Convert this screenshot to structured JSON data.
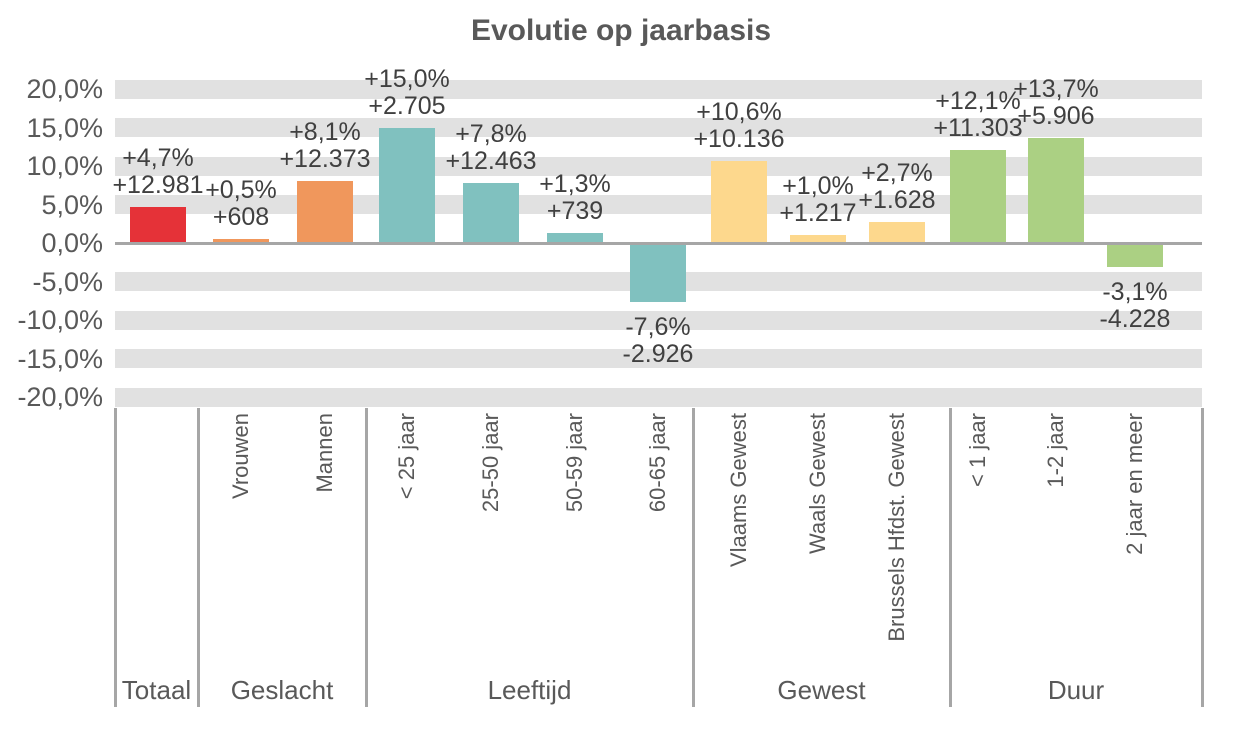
{
  "chart_data": {
    "type": "bar",
    "title": "Evolutie op jaarbasis",
    "unit": "%",
    "grid": "horizontal-stripes",
    "legend": "none",
    "y_axis": {
      "min": -20,
      "max": 20,
      "step": 5,
      "ticks": [
        {
          "value": 20,
          "label": "20,0%"
        },
        {
          "value": 15,
          "label": "15,0%"
        },
        {
          "value": 10,
          "label": "10,0%"
        },
        {
          "value": 5,
          "label": "5,0%"
        },
        {
          "value": 0,
          "label": "0,0%"
        },
        {
          "value": -5,
          "label": "-5,0%"
        },
        {
          "value": -10,
          "label": "-10,0%"
        },
        {
          "value": -15,
          "label": "-15,0%"
        },
        {
          "value": -20,
          "label": "-20,0%"
        }
      ]
    },
    "groups": [
      {
        "label": "Totaal",
        "color": "#e53238",
        "bars": [
          {
            "category": "",
            "value_pct": 4.7,
            "label_pct": "+4,7%",
            "label_abs": "+12.981"
          }
        ]
      },
      {
        "label": "Geslacht",
        "color": "#f0975c",
        "bars": [
          {
            "category": "Vrouwen",
            "value_pct": 0.5,
            "label_pct": "+0,5%",
            "label_abs": "+608"
          },
          {
            "category": "Mannen",
            "value_pct": 8.1,
            "label_pct": "+8,1%",
            "label_abs": "+12.373"
          }
        ]
      },
      {
        "label": "Leeftijd",
        "color": "#80c1bf",
        "bars": [
          {
            "category": "< 25 jaar",
            "value_pct": 15.0,
            "label_pct": "+15,0%",
            "label_abs": "+2.705"
          },
          {
            "category": "25-50 jaar",
            "value_pct": 7.8,
            "label_pct": "+7,8%",
            "label_abs": "+12.463"
          },
          {
            "category": "50-59 jaar",
            "value_pct": 1.3,
            "label_pct": "+1,3%",
            "label_abs": "+739"
          },
          {
            "category": "60-65 jaar",
            "value_pct": -7.6,
            "label_pct": "-7,6%",
            "label_abs": "-2.926"
          }
        ]
      },
      {
        "label": "Gewest",
        "color": "#fdd88d",
        "bars": [
          {
            "category": "Vlaams Gewest",
            "value_pct": 10.6,
            "label_pct": "+10,6%",
            "label_abs": "+10.136"
          },
          {
            "category": "Waals Gewest",
            "value_pct": 1.0,
            "label_pct": "+1,0%",
            "label_abs": "+1.217"
          },
          {
            "category": "Brussels Hfdst. Gewest",
            "value_pct": 2.7,
            "label_pct": "+2,7%",
            "label_abs": "+1.628"
          }
        ]
      },
      {
        "label": "Duur",
        "color": "#abd083",
        "bars": [
          {
            "category": "< 1 jaar",
            "value_pct": 12.1,
            "label_pct": "+12,1%",
            "label_abs": "+11.303"
          },
          {
            "category": "1-2 jaar",
            "value_pct": 13.7,
            "label_pct": "+13,7%",
            "label_abs": "+5.906"
          },
          {
            "category": "2 jaar en meer",
            "value_pct": -3.1,
            "label_pct": "-3,1%",
            "label_abs": "-4.228"
          }
        ]
      }
    ],
    "colors": {
      "stripe": "#e1e1e1",
      "axis_line": "#a6a6a6",
      "separator": "#a6a6a6",
      "title_text": "#595959",
      "tick_text": "#595959",
      "category_text": "#595959",
      "value_text": "#404040"
    }
  }
}
